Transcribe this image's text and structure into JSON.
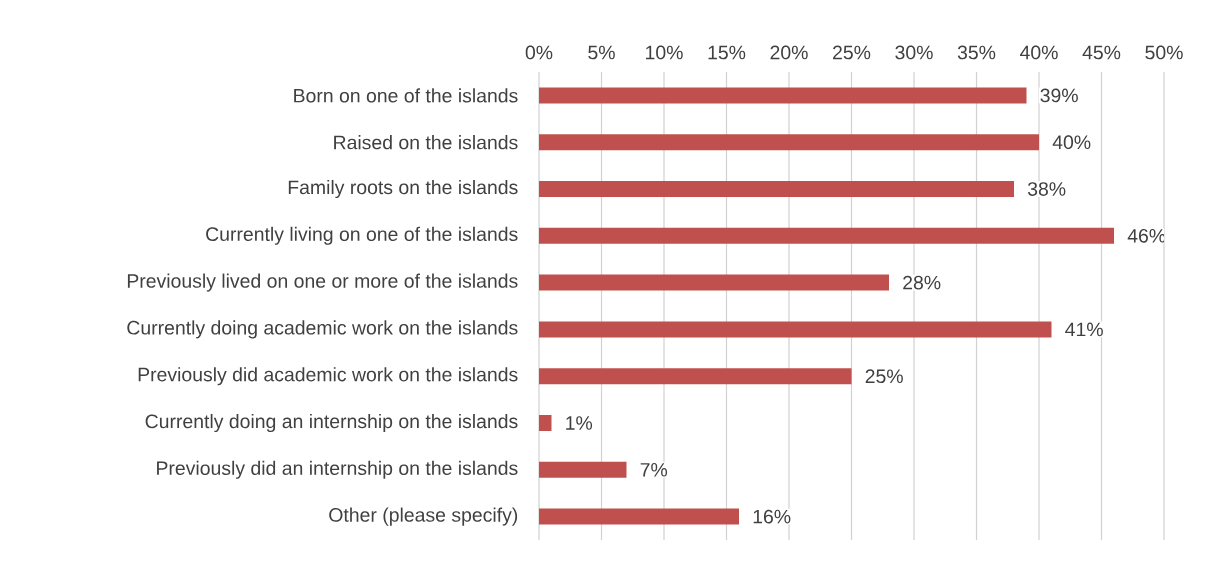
{
  "chart_data": {
    "type": "bar",
    "orientation": "horizontal",
    "categories": [
      "Born on one of the islands",
      "Raised on the islands",
      "Family roots on the islands",
      "Currently living on one of the islands",
      "Previously lived on one or more of the islands",
      "Currently doing academic work on the islands",
      "Previously did academic work on the islands",
      "Currently doing an internship on the islands",
      "Previously did an internship on the islands",
      "Other (please specify)"
    ],
    "values": [
      39,
      40,
      38,
      46,
      28,
      41,
      25,
      1,
      7,
      16
    ],
    "value_labels": [
      "39%",
      "40%",
      "38%",
      "46%",
      "28%",
      "41%",
      "25%",
      "1%",
      "7%",
      "16%"
    ],
    "color": "#c0504d",
    "xlim": [
      0,
      50
    ],
    "xticks": [
      {
        "value": 0,
        "label": "0%"
      },
      {
        "value": 5,
        "label": "5%"
      },
      {
        "value": 10,
        "label": "10%"
      },
      {
        "value": 15,
        "label": "15%"
      },
      {
        "value": 20,
        "label": "20%"
      },
      {
        "value": 25,
        "label": "25%"
      },
      {
        "value": 30,
        "label": "30%"
      },
      {
        "value": 35,
        "label": "35%"
      },
      {
        "value": 40,
        "label": "40%"
      },
      {
        "value": 45,
        "label": "45%"
      },
      {
        "value": 50,
        "label": "50%"
      }
    ],
    "grid": "x"
  }
}
